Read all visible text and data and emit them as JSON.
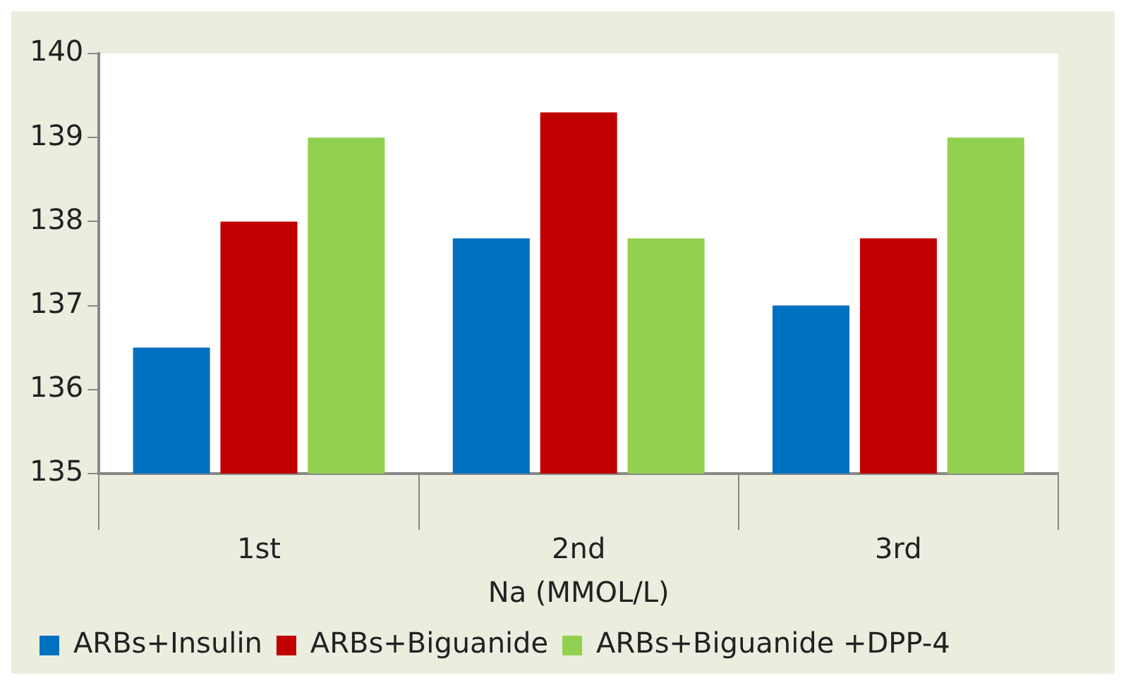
{
  "chart_data": {
    "type": "bar",
    "categories": [
      "1st",
      "2nd",
      "3rd"
    ],
    "xlabel": "Na (MMOL/L)",
    "series": [
      {
        "name": "ARBs+Insulin",
        "color": "#0070c0",
        "values": [
          136.5,
          137.8,
          137
        ]
      },
      {
        "name": "ARBs+Biguanide",
        "color": "#c00000",
        "values": [
          138,
          139.3,
          137.8
        ]
      },
      {
        "name": "ARBs+Biguanide +DPP-4",
        "color": "#92d050",
        "values": [
          139,
          137.8,
          139
        ]
      }
    ],
    "ylim": [
      135,
      140
    ],
    "yticks": [
      135,
      136,
      137,
      138,
      139,
      140
    ],
    "grid": false,
    "legend": "bottom"
  }
}
